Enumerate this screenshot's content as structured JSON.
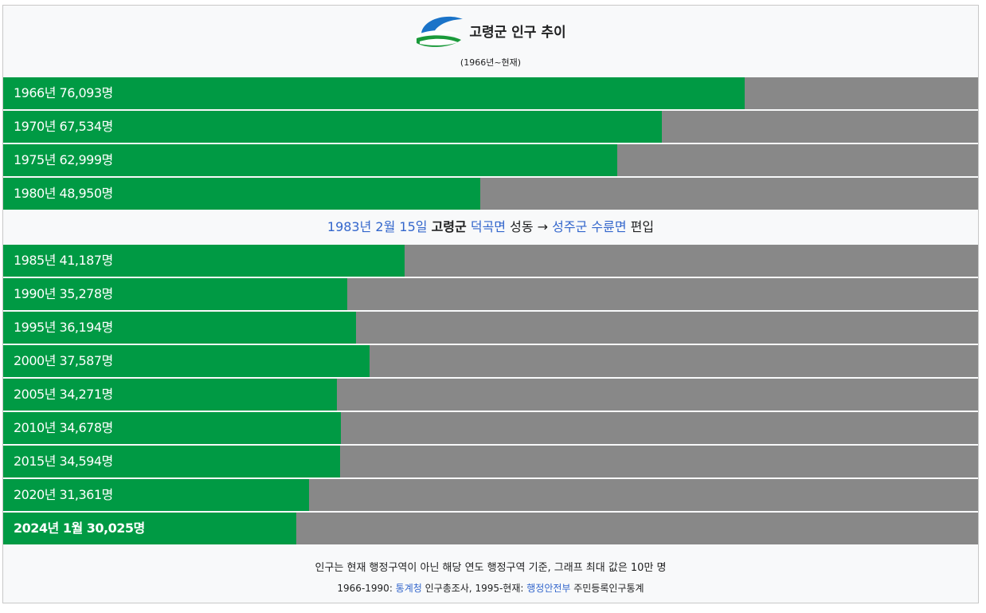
{
  "header": {
    "title": "고령군 인구 추이",
    "subtitle": "(1966년~현재)",
    "logo_icon": "goryeong-county-logo"
  },
  "colors": {
    "bar": "#009a44",
    "track": "#888888",
    "link": "#3366cc"
  },
  "chart_data": {
    "type": "bar",
    "orientation": "horizontal",
    "xlim": [
      0,
      100000
    ],
    "unit": "명",
    "categories": [
      "1966년",
      "1970년",
      "1975년",
      "1980년",
      "1985년",
      "1990년",
      "1995년",
      "2000년",
      "2005년",
      "2010년",
      "2015년",
      "2020년",
      "2024년 1월"
    ],
    "values": [
      76093,
      67534,
      62999,
      48950,
      41187,
      35278,
      36194,
      37587,
      34271,
      34678,
      34594,
      31361,
      30025
    ],
    "labels": [
      "1966년 76,093명",
      "1970년 67,534명",
      "1975년 62,999명",
      "1980년 48,950명",
      "1985년 41,187명",
      "1990년 35,278명",
      "1995년 36,194명",
      "2000년 37,587명",
      "2005년 34,271명",
      "2010년 34,678명",
      "2015년 34,594명",
      "2020년 31,361명",
      "2024년 1월 30,025명"
    ],
    "annotation": {
      "after_index": 3,
      "date": "1983년 2월 15일",
      "county": "고령군",
      "town": "덕곡면",
      "village": "성동",
      "arrow": "→",
      "target": "성주군 수륜면",
      "action": "편입"
    }
  },
  "footer": {
    "note": "인구는 현재 행정구역이 아닌 해당 연도 행정구역 기준, 그래프 최대 값은 10만 명",
    "source_prefix": "1966-1990: ",
    "source1_link": "통계청",
    "source1_text": " 인구총조사, 1995-현재: ",
    "source2_link": "행정안전부",
    "source2_text": " 주민등록인구통계"
  }
}
